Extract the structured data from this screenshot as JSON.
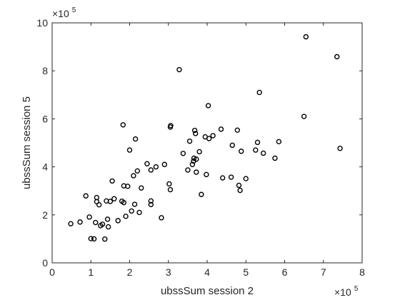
{
  "chart_data": {
    "type": "scatter",
    "xlabel": "ubssSum session 2",
    "ylabel": "ubssSum session 5",
    "x_multiplier": {
      "base": "×10",
      "exponent": "5"
    },
    "y_multiplier": {
      "base": "×10",
      "exponent": "5"
    },
    "xlim": [
      0,
      800000
    ],
    "ylim": [
      0,
      1000000
    ],
    "x_ticks": [
      "0",
      "1",
      "2",
      "3",
      "4",
      "5",
      "6",
      "7",
      "8"
    ],
    "y_ticks": [
      "0",
      "2",
      "4",
      "6",
      "8",
      "10"
    ],
    "grid": false,
    "marker": "circle",
    "marker_color": "#000000",
    "points": [
      [
        48000,
        163000
      ],
      [
        72000,
        170000
      ],
      [
        87000,
        279000
      ],
      [
        96000,
        191000
      ],
      [
        100000,
        101000
      ],
      [
        108000,
        100000
      ],
      [
        112000,
        168000
      ],
      [
        115000,
        255000
      ],
      [
        115000,
        272000
      ],
      [
        121000,
        242000
      ],
      [
        125000,
        155000
      ],
      [
        130000,
        161000
      ],
      [
        136000,
        99000
      ],
      [
        140000,
        258000
      ],
      [
        143000,
        182000
      ],
      [
        145000,
        150000
      ],
      [
        150000,
        256000
      ],
      [
        155000,
        341000
      ],
      [
        160000,
        267000
      ],
      [
        170000,
        176000
      ],
      [
        180000,
        257000
      ],
      [
        183000,
        575000
      ],
      [
        185000,
        321000
      ],
      [
        185000,
        251000
      ],
      [
        190000,
        194000
      ],
      [
        195000,
        319000
      ],
      [
        200000,
        470000
      ],
      [
        205000,
        216000
      ],
      [
        210000,
        363000
      ],
      [
        213000,
        244000
      ],
      [
        215000,
        516000
      ],
      [
        220000,
        383000
      ],
      [
        225000,
        210000
      ],
      [
        230000,
        312000
      ],
      [
        245000,
        413000
      ],
      [
        255000,
        387000
      ],
      [
        255000,
        243000
      ],
      [
        255000,
        258000
      ],
      [
        268000,
        400000
      ],
      [
        282000,
        188000
      ],
      [
        290000,
        410000
      ],
      [
        302000,
        329000
      ],
      [
        305000,
        305000
      ],
      [
        305000,
        566000
      ],
      [
        306000,
        572000
      ],
      [
        328000,
        805000
      ],
      [
        338000,
        456000
      ],
      [
        350000,
        387000
      ],
      [
        355000,
        507000
      ],
      [
        362000,
        410000
      ],
      [
        365000,
        424000
      ],
      [
        366000,
        436000
      ],
      [
        368000,
        552000
      ],
      [
        370000,
        539000
      ],
      [
        372000,
        378000
      ],
      [
        372000,
        432000
      ],
      [
        380000,
        463000
      ],
      [
        385000,
        285000
      ],
      [
        395000,
        525000
      ],
      [
        398000,
        368000
      ],
      [
        403000,
        655000
      ],
      [
        405000,
        518000
      ],
      [
        415000,
        530000
      ],
      [
        436000,
        557000
      ],
      [
        440000,
        354000
      ],
      [
        462000,
        357000
      ],
      [
        465000,
        490000
      ],
      [
        478000,
        553000
      ],
      [
        482000,
        323000
      ],
      [
        485000,
        302000
      ],
      [
        488000,
        465000
      ],
      [
        500000,
        351000
      ],
      [
        525000,
        470000
      ],
      [
        530000,
        502000
      ],
      [
        535000,
        710000
      ],
      [
        545000,
        457000
      ],
      [
        575000,
        436000
      ],
      [
        585000,
        505000
      ],
      [
        650000,
        610000
      ],
      [
        655000,
        942000
      ],
      [
        735000,
        859000
      ],
      [
        743000,
        477000
      ]
    ]
  }
}
